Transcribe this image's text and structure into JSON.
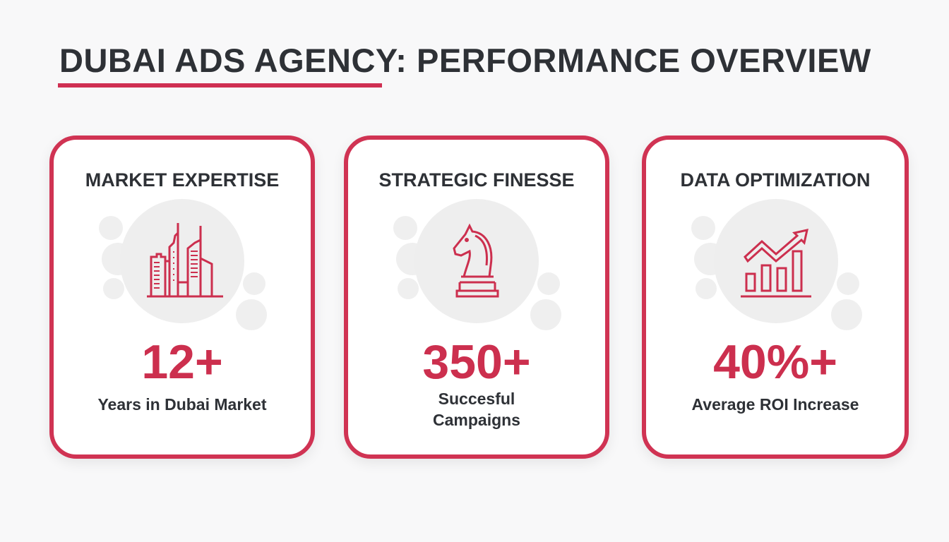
{
  "title": "DUBAI ADS AGENCY: PERFORMANCE OVERVIEW",
  "accent_color": "#cf2f52",
  "cards": [
    {
      "title": "MARKET EXPERTISE",
      "icon": "city-skyline-icon",
      "value": "12+",
      "label": "Years in Dubai Market"
    },
    {
      "title": "STRATEGIC FINESSE",
      "icon": "chess-knight-icon",
      "value": "350+",
      "label": "Succesful Campaigns"
    },
    {
      "title": "DATA OPTIMIZATION",
      "icon": "bar-chart-growth-icon",
      "value": "40%+",
      "label": "Average ROI Increase"
    }
  ]
}
